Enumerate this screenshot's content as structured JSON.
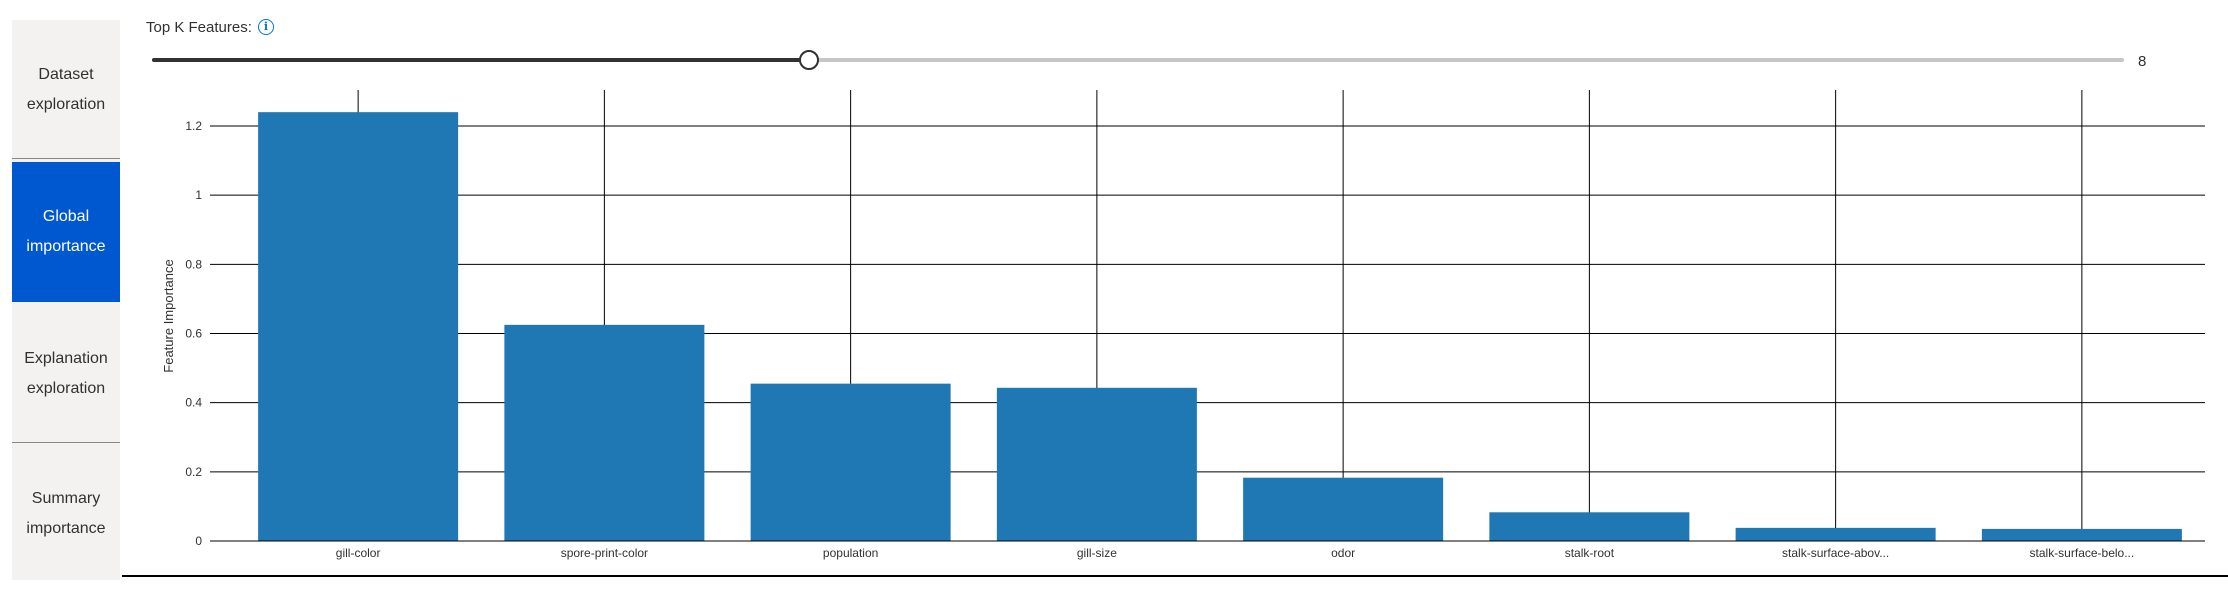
{
  "nav": {
    "items": [
      {
        "label": "Dataset exploration",
        "active": false
      },
      {
        "label": "Global importance",
        "active": true
      },
      {
        "label": "Explanation exploration",
        "active": false
      },
      {
        "label": "Summary importance",
        "active": false
      }
    ]
  },
  "slider": {
    "label": "Top K Features:",
    "value": "8",
    "value_num": 8,
    "min": 1,
    "max": 22
  },
  "colors": {
    "bar": "#1f77b4",
    "nav_active": "#0058d1",
    "grid": "#000000"
  },
  "chart_data": {
    "type": "bar",
    "title": "",
    "xlabel": "",
    "ylabel": "Feature Importance",
    "ylim": [
      0,
      1.2
    ],
    "yticks": [
      0,
      0.2,
      0.4,
      0.6,
      0.8,
      1,
      1.2
    ],
    "ytick_labels": [
      "0",
      "0.2",
      "0.4",
      "0.6",
      "0.8",
      "1",
      "1.2"
    ],
    "grid": true,
    "categories": [
      "gill-color",
      "spore-print-color",
      "population",
      "gill-size",
      "odor",
      "stalk-root",
      "stalk-surface-abov...",
      "stalk-surface-belo..."
    ],
    "values": [
      1.24,
      0.625,
      0.455,
      0.443,
      0.183,
      0.083,
      0.038,
      0.035
    ]
  }
}
